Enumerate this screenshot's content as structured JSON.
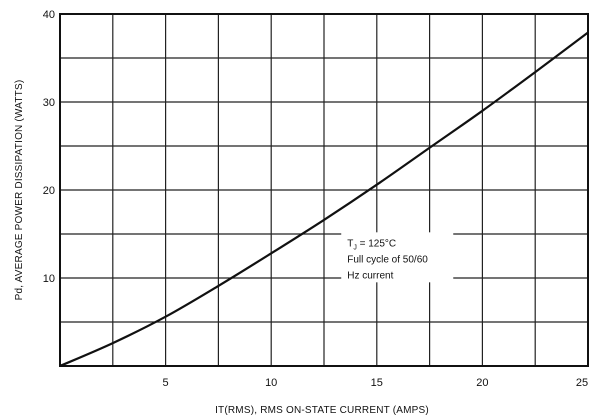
{
  "chart_data": {
    "type": "line",
    "title": "",
    "xlabel": "IT(RMS), RMS ON-STATE CURRENT (AMPS)",
    "ylabel": "Pd, AVERAGE POWER DISSIPATION (WATTS)",
    "xlim": [
      0,
      25
    ],
    "ylim": [
      0,
      40
    ],
    "x_ticks": [
      "5",
      "10",
      "15",
      "20",
      "25"
    ],
    "y_ticks": [
      "10",
      "20",
      "30",
      "40"
    ],
    "grid": true,
    "series": [
      {
        "x": [
          0,
          2.5,
          5,
          7.5,
          10,
          12.5,
          15,
          17.5,
          20,
          22.5,
          25
        ],
        "y": [
          0,
          2.6,
          5.6,
          9.1,
          12.8,
          16.6,
          20.6,
          24.8,
          29.0,
          33.4,
          37.9
        ]
      }
    ],
    "annotation": {
      "line1": "T",
      "line1_sub": "J",
      "line1_rest": " = 125°C",
      "line2": "Full cycle of 50/60",
      "line3": "Hz current"
    }
  }
}
